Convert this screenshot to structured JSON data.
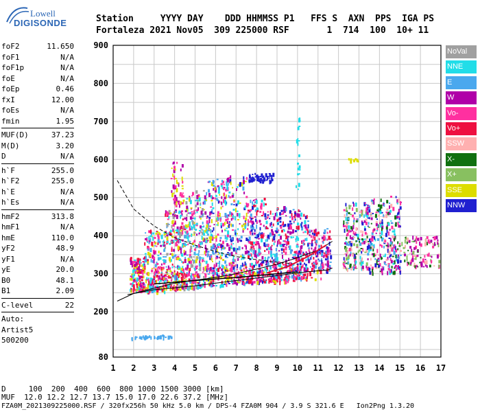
{
  "logo": {
    "line1": "Lowell",
    "line2": "DIGISONDE"
  },
  "header": {
    "line1": "Station     YYYY DAY    DDD HHMMSS P1   FFS S  AXN  PPS  IGA PS",
    "line2": "Fortaleza 2021 Nov05  309 225000 RSF       1  714  100  10+ 11"
  },
  "params": {
    "group1": [
      {
        "k": "foF2",
        "v": "11.650"
      },
      {
        "k": "foF1",
        "v": "N/A"
      },
      {
        "k": "foF1p",
        "v": "N/A"
      },
      {
        "k": "foE",
        "v": "N/A"
      },
      {
        "k": "foEp",
        "v": "0.46"
      },
      {
        "k": "fxI",
        "v": "12.00"
      },
      {
        "k": "foEs",
        "v": "N/A"
      },
      {
        "k": "fmin",
        "v": "1.95"
      }
    ],
    "group2": [
      {
        "k": "MUF(D)",
        "v": "37.23"
      },
      {
        "k": "M(D)",
        "v": "3.20"
      },
      {
        "k": "D",
        "v": "N/A"
      }
    ],
    "group3": [
      {
        "k": "h`F",
        "v": "255.0"
      },
      {
        "k": "h`F2",
        "v": "255.0"
      },
      {
        "k": "h`E",
        "v": "N/A"
      },
      {
        "k": "h`Es",
        "v": "N/A"
      }
    ],
    "group4": [
      {
        "k": "hmF2",
        "v": "313.8"
      },
      {
        "k": "hmF1",
        "v": "N/A"
      },
      {
        "k": "hmE",
        "v": "110.0"
      },
      {
        "k": "yF2",
        "v": "48.9"
      },
      {
        "k": "yF1",
        "v": "N/A"
      },
      {
        "k": "yE",
        "v": "20.0"
      },
      {
        "k": "B0",
        "v": "48.1"
      },
      {
        "k": "B1",
        "v": "2.09"
      }
    ],
    "group5": [
      {
        "k": "C-level",
        "v": "22"
      }
    ],
    "auto": [
      "Auto:",
      "Artist5",
      "500200"
    ]
  },
  "footer": {
    "line1": "D     100  200  400  600  800 1000 1500 3000 [km]",
    "line2": "MUF  12.0 12.2 12.7 13.7 15.0 17.0 22.6 37.2 [MHz]",
    "line3": "FZA0M_2021309225000.RSF / 320fx256h 50 kHz 5.0 km / DPS-4 FZA0M 904 / 3.9 S 321.6 E   Ion2Png 1.3.20"
  },
  "colors": {
    "NoVal": "#a0a0a0",
    "NNE": "#22dde8",
    "E": "#4aa8ee",
    "W": "#b000a8",
    "Vo-": "#ff30a0",
    "Vo+": "#ee1040",
    "SSW": "#ffb0b0",
    "X-": "#107010",
    "X+": "#88c060",
    "SSE": "#dddd00",
    "NNW": "#2020d0"
  },
  "chart_data": {
    "type": "scatter",
    "xlim": [
      1,
      17
    ],
    "ylim": [
      80,
      900
    ],
    "xticks": [
      "1",
      "2",
      "3",
      "4",
      "5",
      "6",
      "7",
      "8",
      "9",
      "10",
      "11",
      "12",
      "13",
      "14",
      "15",
      "16",
      "17"
    ],
    "yticks": [
      "900",
      "800",
      "700",
      "600",
      "500",
      "400",
      "300",
      "200",
      "80"
    ],
    "ytick_values": [
      900,
      800,
      700,
      600,
      500,
      400,
      300,
      200,
      80
    ],
    "grid": true,
    "legend": [
      {
        "name": "NoVal",
        "label": "NoVal"
      },
      {
        "name": "NNE",
        "label": "NNE"
      },
      {
        "name": "E",
        "label": "E"
      },
      {
        "name": "W",
        "label": "W"
      },
      {
        "name": "Vo-",
        "label": "Vo-"
      },
      {
        "name": "Vo+",
        "label": "Vo+"
      },
      {
        "name": "SSW",
        "label": "SSW"
      },
      {
        "name": "X-",
        "label": "X-"
      },
      {
        "name": "X+",
        "label": "X+"
      },
      {
        "name": "SSE",
        "label": "SSE"
      },
      {
        "name": "NNW",
        "label": "NNW"
      }
    ],
    "legend_placement": "right",
    "clusters": [
      {
        "x": [
          1.8,
          2.5
        ],
        "y": [
          255,
          345
        ],
        "colors": [
          "W",
          "Vo-",
          "SSE",
          "Vo+",
          "NNE"
        ],
        "n": 160
      },
      {
        "x": [
          2.5,
          3.5
        ],
        "y": [
          255,
          420
        ],
        "colors": [
          "W",
          "Vo-",
          "E",
          "SSE",
          "NNE",
          "Vo+"
        ],
        "n": 200
      },
      {
        "x": [
          3.5,
          4.5
        ],
        "y": [
          260,
          470
        ],
        "colors": [
          "W",
          "Vo-",
          "E",
          "NNE",
          "SSE",
          "NoVal",
          "Vo+"
        ],
        "n": 250
      },
      {
        "x": [
          3.8,
          4.4
        ],
        "y": [
          480,
          600
        ],
        "colors": [
          "SSE",
          "W",
          "Vo-"
        ],
        "n": 60
      },
      {
        "x": [
          4.5,
          5.5
        ],
        "y": [
          265,
          520
        ],
        "colors": [
          "E",
          "NNE",
          "W",
          "Vo-",
          "SSE",
          "NoVal"
        ],
        "n": 260
      },
      {
        "x": [
          5.5,
          6.5
        ],
        "y": [
          270,
          550
        ],
        "colors": [
          "E",
          "NNE",
          "W",
          "Vo-",
          "NNW",
          "SSE"
        ],
        "n": 260
      },
      {
        "x": [
          6.5,
          7.5
        ],
        "y": [
          275,
          560
        ],
        "colors": [
          "E",
          "NNE",
          "W",
          "Vo-",
          "NNW",
          "SSE"
        ],
        "n": 230
      },
      {
        "x": [
          7.5,
          8.5
        ],
        "y": [
          280,
          500
        ],
        "colors": [
          "E",
          "NNE",
          "NNW",
          "W",
          "Vo-",
          "Vo+"
        ],
        "n": 220
      },
      {
        "x": [
          7.6,
          8.8
        ],
        "y": [
          545,
          565
        ],
        "colors": [
          "NNW"
        ],
        "n": 60
      },
      {
        "x": [
          8.5,
          9.5
        ],
        "y": [
          285,
          480
        ],
        "colors": [
          "NNW",
          "E",
          "W",
          "Vo-",
          "Vo+",
          "NNE"
        ],
        "n": 200
      },
      {
        "x": [
          9.5,
          10.5
        ],
        "y": [
          290,
          470
        ],
        "colors": [
          "NNW",
          "W",
          "Vo+",
          "Vo-",
          "NNE",
          "E"
        ],
        "n": 200
      },
      {
        "x": [
          10.5,
          11.6
        ],
        "y": [
          310,
          420
        ],
        "colors": [
          "NNW",
          "W",
          "Vo+",
          "Vo-",
          "E"
        ],
        "n": 150
      },
      {
        "x": [
          12.2,
          13.5
        ],
        "y": [
          315,
          490
        ],
        "colors": [
          "W",
          "Vo-",
          "E",
          "NNW",
          "X+",
          "SSW",
          "NNE",
          "X-"
        ],
        "n": 230
      },
      {
        "x": [
          13.5,
          15.0
        ],
        "y": [
          305,
          505
        ],
        "colors": [
          "W",
          "Vo-",
          "E",
          "NNW",
          "SSW",
          "NNE",
          "X-"
        ],
        "n": 270
      },
      {
        "x": [
          15.0,
          16.9
        ],
        "y": [
          320,
          400
        ],
        "colors": [
          "W",
          "Vo-",
          "SSW",
          "X-",
          "X+"
        ],
        "n": 110
      },
      {
        "x": [
          2.6,
          11.2
        ],
        "y": [
          280,
          320
        ],
        "colors": [
          "SSE",
          "Vo+",
          "Vo-"
        ],
        "n": 180
      },
      {
        "x": [
          1.8,
          3.8
        ],
        "y": [
          132,
          140
        ],
        "colors": [
          "E"
        ],
        "n": 40
      },
      {
        "x": [
          12.4,
          13.0
        ],
        "y": [
          597,
          604
        ],
        "colors": [
          "SSE"
        ],
        "n": 10
      },
      {
        "x": [
          9.9,
          10.1
        ],
        "y": [
          520,
          720
        ],
        "colors": [
          "NNE"
        ],
        "n": 20
      }
    ],
    "curves": {
      "dashed": [
        [
          1.2,
          545
        ],
        [
          2,
          470
        ],
        [
          3,
          425
        ],
        [
          4,
          395
        ],
        [
          5,
          375
        ],
        [
          6,
          358
        ],
        [
          7,
          345
        ],
        [
          8,
          337
        ],
        [
          9,
          330
        ],
        [
          10,
          325
        ]
      ],
      "solid_lower": [
        [
          1.7,
          245
        ],
        [
          3,
          258
        ],
        [
          5,
          268
        ],
        [
          7,
          282
        ],
        [
          9,
          295
        ],
        [
          10.5,
          305
        ],
        [
          11.5,
          310
        ],
        [
          11.7,
          315
        ]
      ],
      "solid_upper": [
        [
          1.2,
          228
        ],
        [
          2,
          248
        ],
        [
          3,
          262
        ],
        [
          4,
          275
        ],
        [
          5,
          283
        ],
        [
          6,
          290
        ],
        [
          7,
          300
        ],
        [
          8,
          312
        ],
        [
          9,
          325
        ],
        [
          10,
          342
        ],
        [
          11,
          362
        ],
        [
          11.7,
          385
        ]
      ],
      "red": [
        [
          8.5,
          302
        ],
        [
          9.5,
          318
        ],
        [
          10.5,
          345
        ],
        [
          11.4,
          375
        ]
      ],
      "black_mid": [
        [
          3,
          273
        ],
        [
          5,
          282
        ],
        [
          7,
          290
        ],
        [
          9,
          300
        ],
        [
          10,
          305
        ]
      ]
    }
  }
}
